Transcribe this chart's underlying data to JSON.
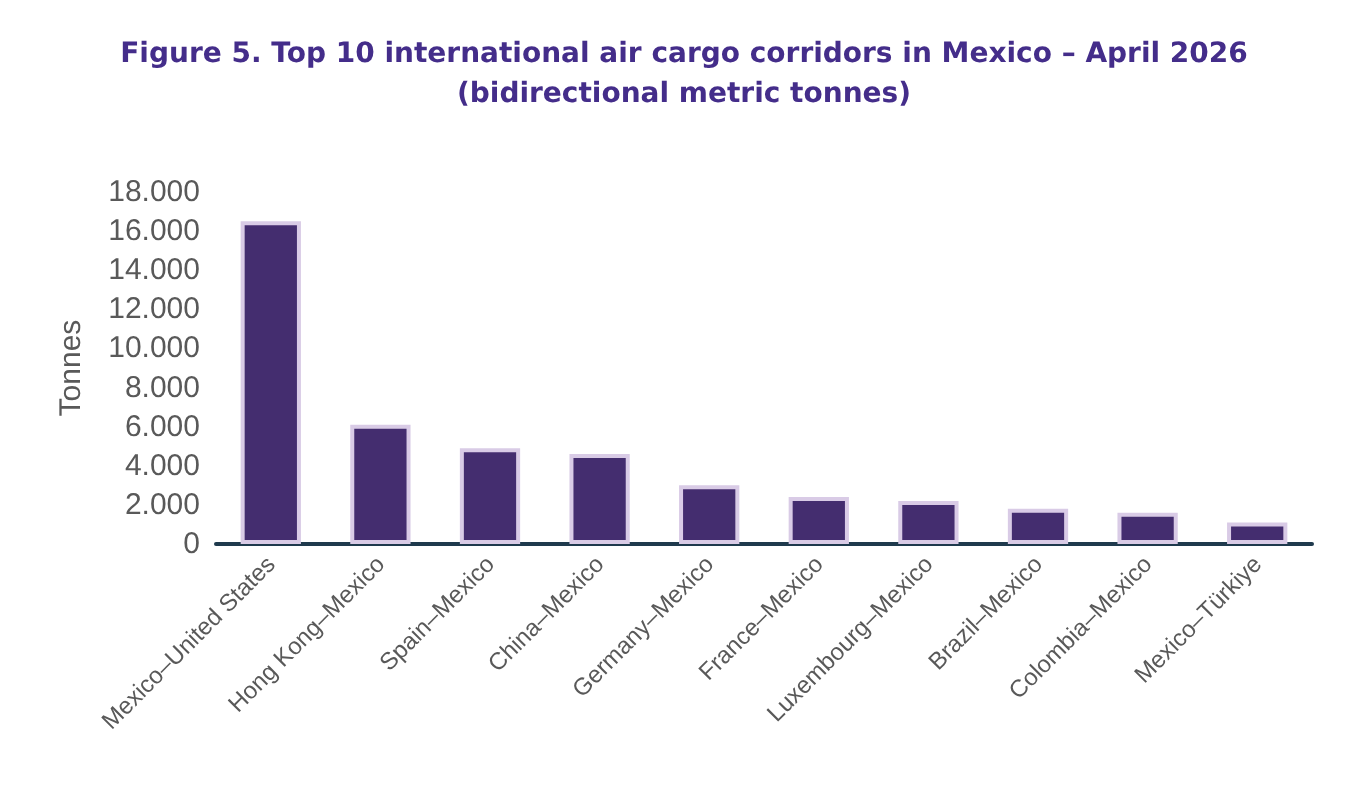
{
  "chart_data": {
    "type": "bar",
    "title": "Figure 5. Top 10 international air cargo corridors in Mexico – April 2026\n(bidirectional metric tonnes)",
    "ylabel": "Tonnes",
    "categories": [
      "Mexico–United States",
      "Hong Kong–Mexico",
      "Spain–Mexico",
      "China–Mexico",
      "Germany–Mexico",
      "France–Mexico",
      "Luxembourg–Mexico",
      "Brazil–Mexico",
      "Colombia–Mexico",
      "Mexico–Türkiye"
    ],
    "values": [
      16500,
      6100,
      4900,
      4600,
      3000,
      2400,
      2200,
      1800,
      1600,
      1100
    ],
    "color": "#442d6f",
    "ylim": [
      0,
      18000
    ],
    "yticks": [
      {
        "value": 0,
        "label": "0"
      },
      {
        "value": 2000,
        "label": "2.000"
      },
      {
        "value": 4000,
        "label": "4.000"
      },
      {
        "value": 6000,
        "label": "6.000"
      },
      {
        "value": 8000,
        "label": "8.000"
      },
      {
        "value": 10000,
        "label": "10.000"
      },
      {
        "value": 12000,
        "label": "12.000"
      },
      {
        "value": 14000,
        "label": "14.000"
      },
      {
        "value": 16000,
        "label": "16.000"
      },
      {
        "value": 18000,
        "label": "18.000"
      }
    ],
    "grid": false
  }
}
